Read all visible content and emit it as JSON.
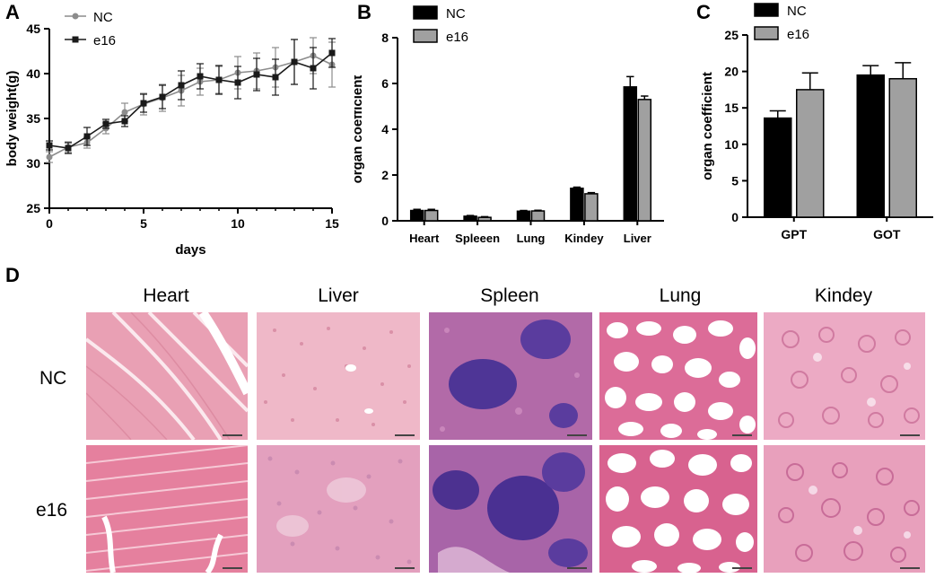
{
  "panels": {
    "a": "A",
    "b": "B",
    "c": "C",
    "d": "D"
  },
  "colors": {
    "nc_line": "#8c8c8c",
    "e16_line": "#1a1a1a",
    "nc_bar": "#000000",
    "e16_bar": "#a0a0a0"
  },
  "chart_data": [
    {
      "type": "line",
      "xlabel": "days",
      "ylabel": "body weight(g)",
      "xlim": [
        0,
        15
      ],
      "ylim": [
        25,
        45
      ],
      "xticks": [
        0,
        5,
        10,
        15
      ],
      "yticks": [
        25,
        30,
        35,
        40,
        45
      ],
      "legend_position": "top-left",
      "x": [
        0,
        1,
        2,
        3,
        4,
        5,
        6,
        7,
        8,
        9,
        10,
        11,
        12,
        13,
        14,
        15
      ],
      "series": [
        {
          "name": "NC",
          "marker": "circle",
          "values": [
            30.7,
            31.8,
            32.3,
            33.9,
            35.7,
            36.6,
            37.3,
            38.1,
            39.1,
            39.3,
            40.1,
            40.3,
            40.7,
            41.3,
            42.0,
            41.0
          ],
          "errors": [
            0.6,
            0.6,
            0.6,
            0.6,
            1.0,
            1.2,
            1.5,
            1.7,
            1.5,
            1.5,
            1.8,
            2.0,
            2.2,
            2.5,
            2.0,
            2.5
          ]
        },
        {
          "name": "e16",
          "marker": "square",
          "values": [
            32.0,
            31.7,
            33.0,
            34.4,
            34.7,
            36.7,
            37.4,
            38.7,
            39.7,
            39.3,
            39.0,
            39.9,
            39.6,
            41.3,
            40.6,
            42.3
          ],
          "errors": [
            0.5,
            0.6,
            1.0,
            0.5,
            0.6,
            1.0,
            1.3,
            1.6,
            1.4,
            1.6,
            1.8,
            1.8,
            2.0,
            2.5,
            2.3,
            1.6
          ]
        }
      ]
    },
    {
      "type": "bar",
      "xlabel": "",
      "ylabel": "organ coefficient",
      "ylim": [
        0,
        8
      ],
      "yticks": [
        0,
        2,
        4,
        6,
        8
      ],
      "legend_position": "top-left",
      "categories": [
        "Heart",
        "Spleeen",
        "Lung",
        "Kindey",
        "Liver"
      ],
      "series": [
        {
          "name": "NC",
          "values": [
            0.45,
            0.2,
            0.42,
            1.42,
            5.85
          ],
          "errors": [
            0.05,
            0.03,
            0.03,
            0.05,
            0.45
          ]
        },
        {
          "name": "e16",
          "values": [
            0.45,
            0.15,
            0.43,
            1.18,
            5.3
          ],
          "errors": [
            0.05,
            0.03,
            0.03,
            0.05,
            0.15
          ]
        }
      ]
    },
    {
      "type": "bar",
      "xlabel": "",
      "ylabel": "organ coefficient",
      "ylim": [
        0,
        25
      ],
      "yticks": [
        0,
        5,
        10,
        15,
        20,
        25
      ],
      "legend_position": "top-left",
      "categories": [
        "GPT",
        "GOT"
      ],
      "series": [
        {
          "name": "NC",
          "values": [
            13.6,
            19.5
          ],
          "errors": [
            1.0,
            1.3
          ]
        },
        {
          "name": "e16",
          "values": [
            17.5,
            19.0
          ],
          "errors": [
            2.3,
            2.2
          ]
        }
      ]
    }
  ],
  "histology": {
    "columns": [
      "Heart",
      "Liver",
      "Spleen",
      "Lung",
      "Kindey"
    ],
    "rows": [
      "NC",
      "e16"
    ]
  }
}
